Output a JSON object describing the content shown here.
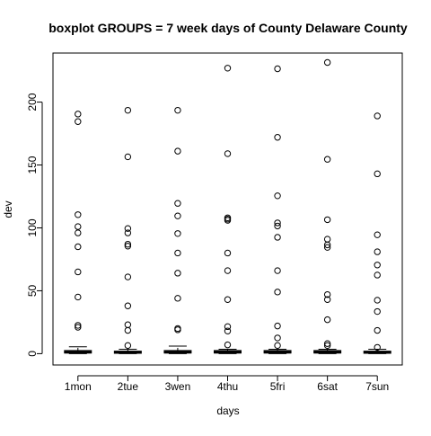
{
  "chart_data": {
    "type": "boxplot",
    "title": "boxplot GROUPS = 7 week days of County Delaware County",
    "xlabel": "days",
    "ylabel": "dev",
    "ylim": [
      -9,
      239
    ],
    "yticks": [
      0,
      50,
      100,
      150,
      200
    ],
    "grid": false,
    "categories": [
      "1mon",
      "2tue",
      "3wen",
      "4thu",
      "5fri",
      "6sat",
      "7sun"
    ],
    "boxes": [
      {
        "whisker_low": 0,
        "q1": 0.5,
        "median": 1.3,
        "q3": 2.5,
        "whisker_high": 5.5,
        "outliers": [
          190.5,
          184.5,
          110.5,
          101,
          96,
          85,
          65,
          45,
          22.5,
          21
        ]
      },
      {
        "whisker_low": 0,
        "q1": 0.3,
        "median": 1,
        "q3": 2,
        "whisker_high": 3.5,
        "outliers": [
          193.5,
          156.5,
          99.5,
          96,
          87,
          85.5,
          61,
          38,
          23,
          18.5,
          6.5
        ]
      },
      {
        "whisker_low": 0,
        "q1": 0.5,
        "median": 1.3,
        "q3": 2.5,
        "whisker_high": 6,
        "outliers": [
          193.5,
          161,
          119.5,
          109.5,
          95.5,
          80,
          64,
          44,
          20,
          19
        ]
      },
      {
        "whisker_low": 0,
        "q1": 0.5,
        "median": 1.3,
        "q3": 2.5,
        "whisker_high": 3.5,
        "outliers": [
          227,
          159,
          108,
          107,
          106,
          80,
          66,
          43,
          21.5,
          18,
          7
        ]
      },
      {
        "whisker_low": 0,
        "q1": 0.5,
        "median": 1.3,
        "q3": 2.5,
        "whisker_high": 3.5,
        "outliers": [
          226.5,
          172,
          125.5,
          104,
          101.5,
          92.5,
          66,
          49,
          22,
          12.5,
          6.5
        ]
      },
      {
        "whisker_low": 0,
        "q1": 0.5,
        "median": 1.3,
        "q3": 2.5,
        "whisker_high": 3.5,
        "outliers": [
          231.5,
          154.5,
          106.5,
          91,
          86.5,
          84.5,
          47,
          43,
          27,
          8,
          6.5
        ]
      },
      {
        "whisker_low": 0,
        "q1": 0.3,
        "median": 1,
        "q3": 2,
        "whisker_high": 3.5,
        "outliers": [
          189,
          143,
          94.5,
          81,
          70.5,
          62.5,
          42.5,
          33.5,
          18.5,
          5
        ]
      }
    ]
  }
}
